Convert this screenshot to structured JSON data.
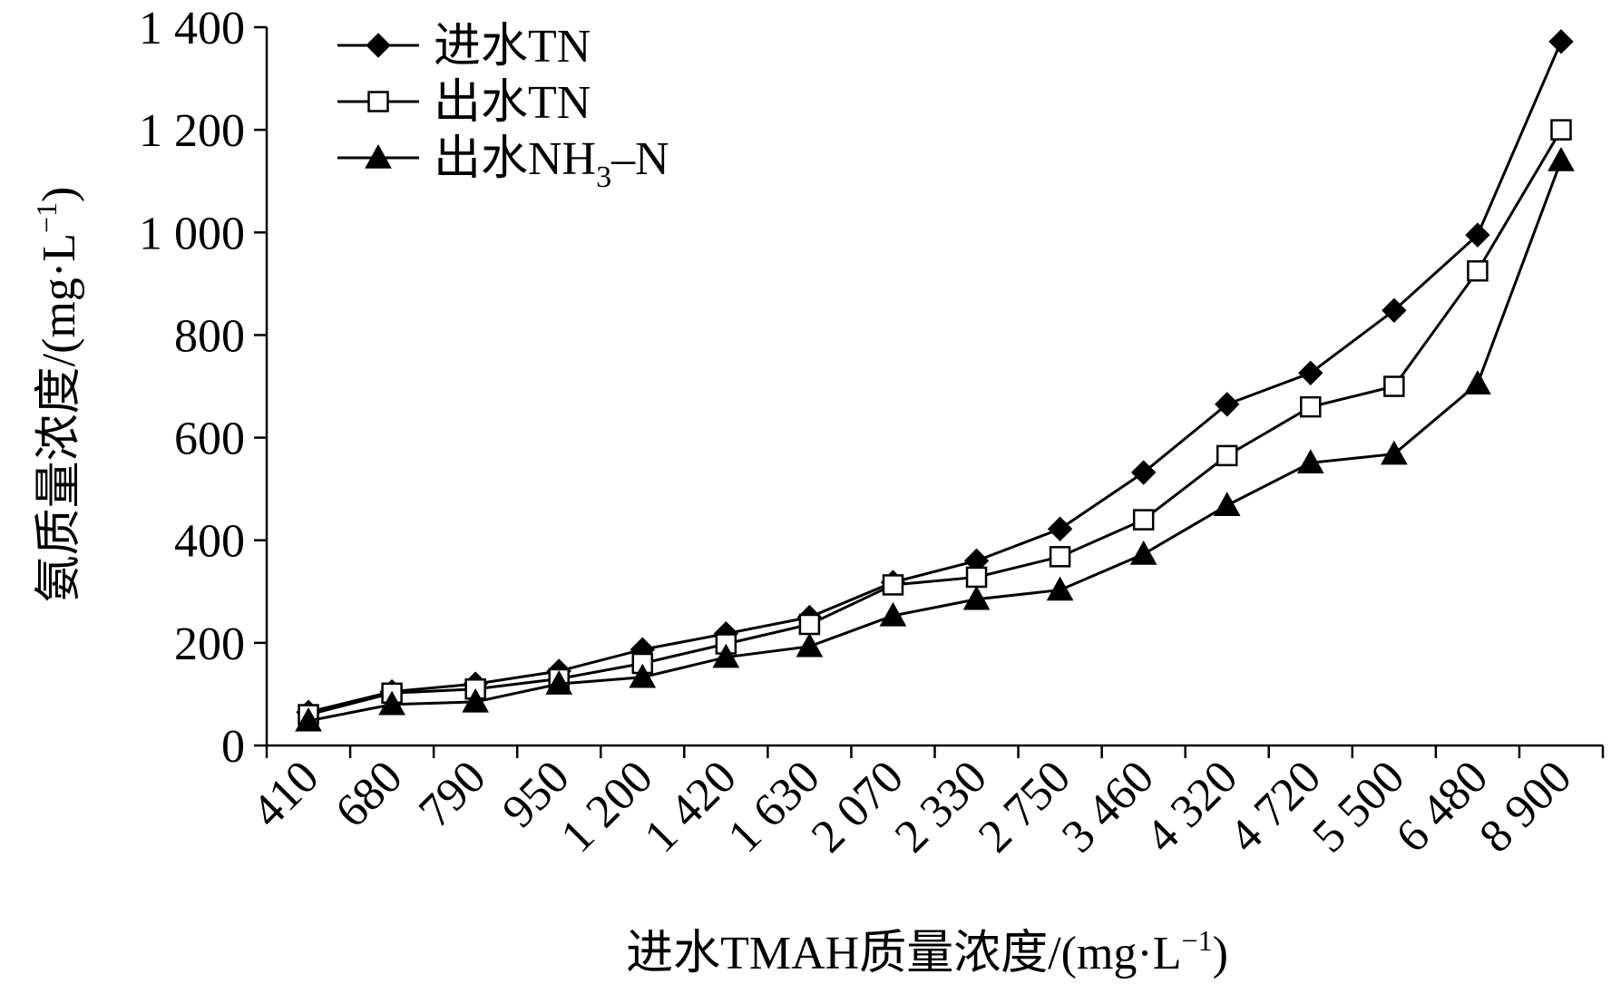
{
  "chart_data": {
    "type": "line",
    "categories": [
      "410",
      "680",
      "790",
      "950",
      "1 200",
      "1 420",
      "1 630",
      "2 070",
      "2 330",
      "2 750",
      "3 460",
      "4 320",
      "4 720",
      "5 500",
      "6 480",
      "8 900"
    ],
    "series": [
      {
        "name_parts": [
          "进水TN"
        ],
        "name": "进水TN",
        "marker": "diamond-filled",
        "values": [
          65,
          105,
          120,
          145,
          187,
          218,
          250,
          318,
          360,
          422,
          532,
          665,
          726,
          848,
          995,
          1372
        ]
      },
      {
        "name_parts": [
          "出水TN"
        ],
        "name": "出水TN",
        "marker": "square-open",
        "values": [
          60,
          102,
          110,
          130,
          160,
          198,
          236,
          313,
          328,
          368,
          440,
          565,
          660,
          700,
          925,
          1200
        ]
      },
      {
        "name_parts": [
          "出水NH",
          "3",
          "–N"
        ],
        "name": "出水NH3–N",
        "marker": "triangle-filled",
        "values": [
          48,
          80,
          85,
          120,
          133,
          172,
          193,
          253,
          285,
          303,
          373,
          468,
          551,
          568,
          705,
          1140
        ]
      }
    ],
    "yticks": [
      0,
      200,
      400,
      600,
      800,
      1000,
      1200,
      1400
    ],
    "ytick_labels": [
      "0",
      "200",
      "400",
      "600",
      "800",
      "1 000",
      "1 200",
      "1 400"
    ],
    "ylim": [
      0,
      1400
    ],
    "xlabel_parts": [
      "进水TMAH质量浓度/(mg·L",
      "−1",
      ")"
    ],
    "ylabel_parts": [
      "氨质量浓度/(mg·L",
      "−1",
      ")"
    ],
    "legend_position": "top-left",
    "grid": false
  }
}
